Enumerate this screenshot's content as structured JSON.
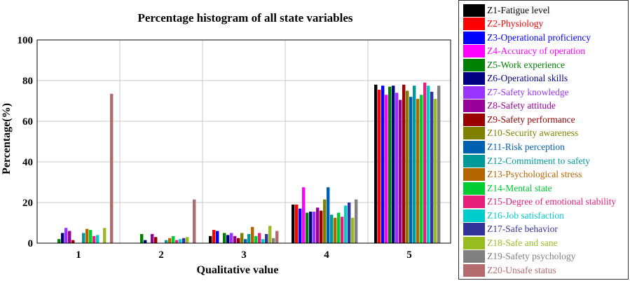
{
  "chart_data": {
    "type": "bar",
    "title": "Percentage histogram of all state variables",
    "xlabel": "Qualitative value",
    "ylabel": "Percentage(%)",
    "ylim": [
      0,
      100
    ],
    "yticks": [
      "0",
      "20",
      "40",
      "60",
      "80",
      "100"
    ],
    "categories": [
      "1",
      "2",
      "3",
      "4",
      "5"
    ],
    "grid": true,
    "legend_position": "right",
    "series": [
      {
        "name": "Z1-Fatigue level",
        "color": "#000000",
        "text_color": "#000000",
        "values": [
          0,
          0,
          3.5,
          19,
          78
        ]
      },
      {
        "name": "Z2-Physiology",
        "color": "#ff0000",
        "text_color": "#ff0000",
        "values": [
          0,
          0,
          6.5,
          19,
          75.5
        ]
      },
      {
        "name": "Z3-Operational proficiency",
        "color": "#0000ff",
        "text_color": "#0000ff",
        "values": [
          0,
          0,
          6,
          17,
          77.5
        ]
      },
      {
        "name": "Z4-Accuracy of operation",
        "color": "#ff00ff",
        "text_color": "#ff00ff",
        "values": [
          0,
          0,
          0,
          27.5,
          73
        ]
      },
      {
        "name": "Z5-Work experience",
        "color": "#008000",
        "text_color": "#008000",
        "values": [
          2,
          4.5,
          5,
          15,
          77
        ]
      },
      {
        "name": "Z6-Operational skills",
        "color": "#000080",
        "text_color": "#000080",
        "values": [
          5,
          1.5,
          4,
          15.5,
          77.5
        ]
      },
      {
        "name": "Z7-Safety knowledge",
        "color": "#9933ff",
        "text_color": "#9933ff",
        "values": [
          7.5,
          0,
          5,
          15.5,
          74
        ]
      },
      {
        "name": "Z8-Safety attitude",
        "color": "#990099",
        "text_color": "#990099",
        "values": [
          6,
          4.5,
          3.5,
          17.5,
          70.5
        ]
      },
      {
        "name": "Z9-Safety performance",
        "color": "#990000",
        "text_color": "#990000",
        "values": [
          1.5,
          3,
          2.5,
          16,
          78
        ]
      },
      {
        "name": "Z10-Security awareness",
        "color": "#808000",
        "text_color": "#808000",
        "values": [
          0,
          0,
          5,
          21.5,
          75
        ]
      },
      {
        "name": "Z11-Risk perception",
        "color": "#0060b0",
        "text_color": "#0060b0",
        "values": [
          0,
          0,
          2,
          27.5,
          72
        ]
      },
      {
        "name": "Z12-Commitment to safety",
        "color": "#009999",
        "text_color": "#009999",
        "values": [
          5,
          1.5,
          4.5,
          14,
          77.5
        ]
      },
      {
        "name": "Z13-Psychological stress",
        "color": "#b36600",
        "text_color": "#b36600",
        "values": [
          7,
          2.5,
          8,
          12.5,
          71
        ]
      },
      {
        "name": "Z14-Mental state",
        "color": "#00cc33",
        "text_color": "#00cc33",
        "values": [
          6.5,
          3.5,
          3.5,
          15,
          73
        ]
      },
      {
        "name": "Z15-Degree of emotional stability",
        "color": "#e6207a",
        "text_color": "#e6207a",
        "values": [
          3.5,
          1.5,
          5,
          13,
          79
        ]
      },
      {
        "name": "Z16-Job satisfaction",
        "color": "#00cccc",
        "text_color": "#00cccc",
        "values": [
          4,
          2,
          2,
          18.5,
          77.5
        ]
      },
      {
        "name": "Z17-Safe behavior",
        "color": "#333399",
        "text_color": "#333399",
        "values": [
          0,
          2.5,
          4.5,
          20,
          74.5
        ]
      },
      {
        "name": "Z18-Safe and sane",
        "color": "#99bb22",
        "text_color": "#99bb22",
        "values": [
          7.5,
          3,
          8.5,
          12.5,
          71
        ]
      },
      {
        "name": "Z19-Safety psychology",
        "color": "#808080",
        "text_color": "#808080",
        "values": [
          0,
          0,
          2.5,
          21.5,
          77.5
        ]
      },
      {
        "name": "Z20-Unsafe status",
        "color": "#b36b6b",
        "text_color": "#b36b6b",
        "values": [
          73.5,
          21.5,
          6,
          0,
          0
        ]
      }
    ]
  }
}
